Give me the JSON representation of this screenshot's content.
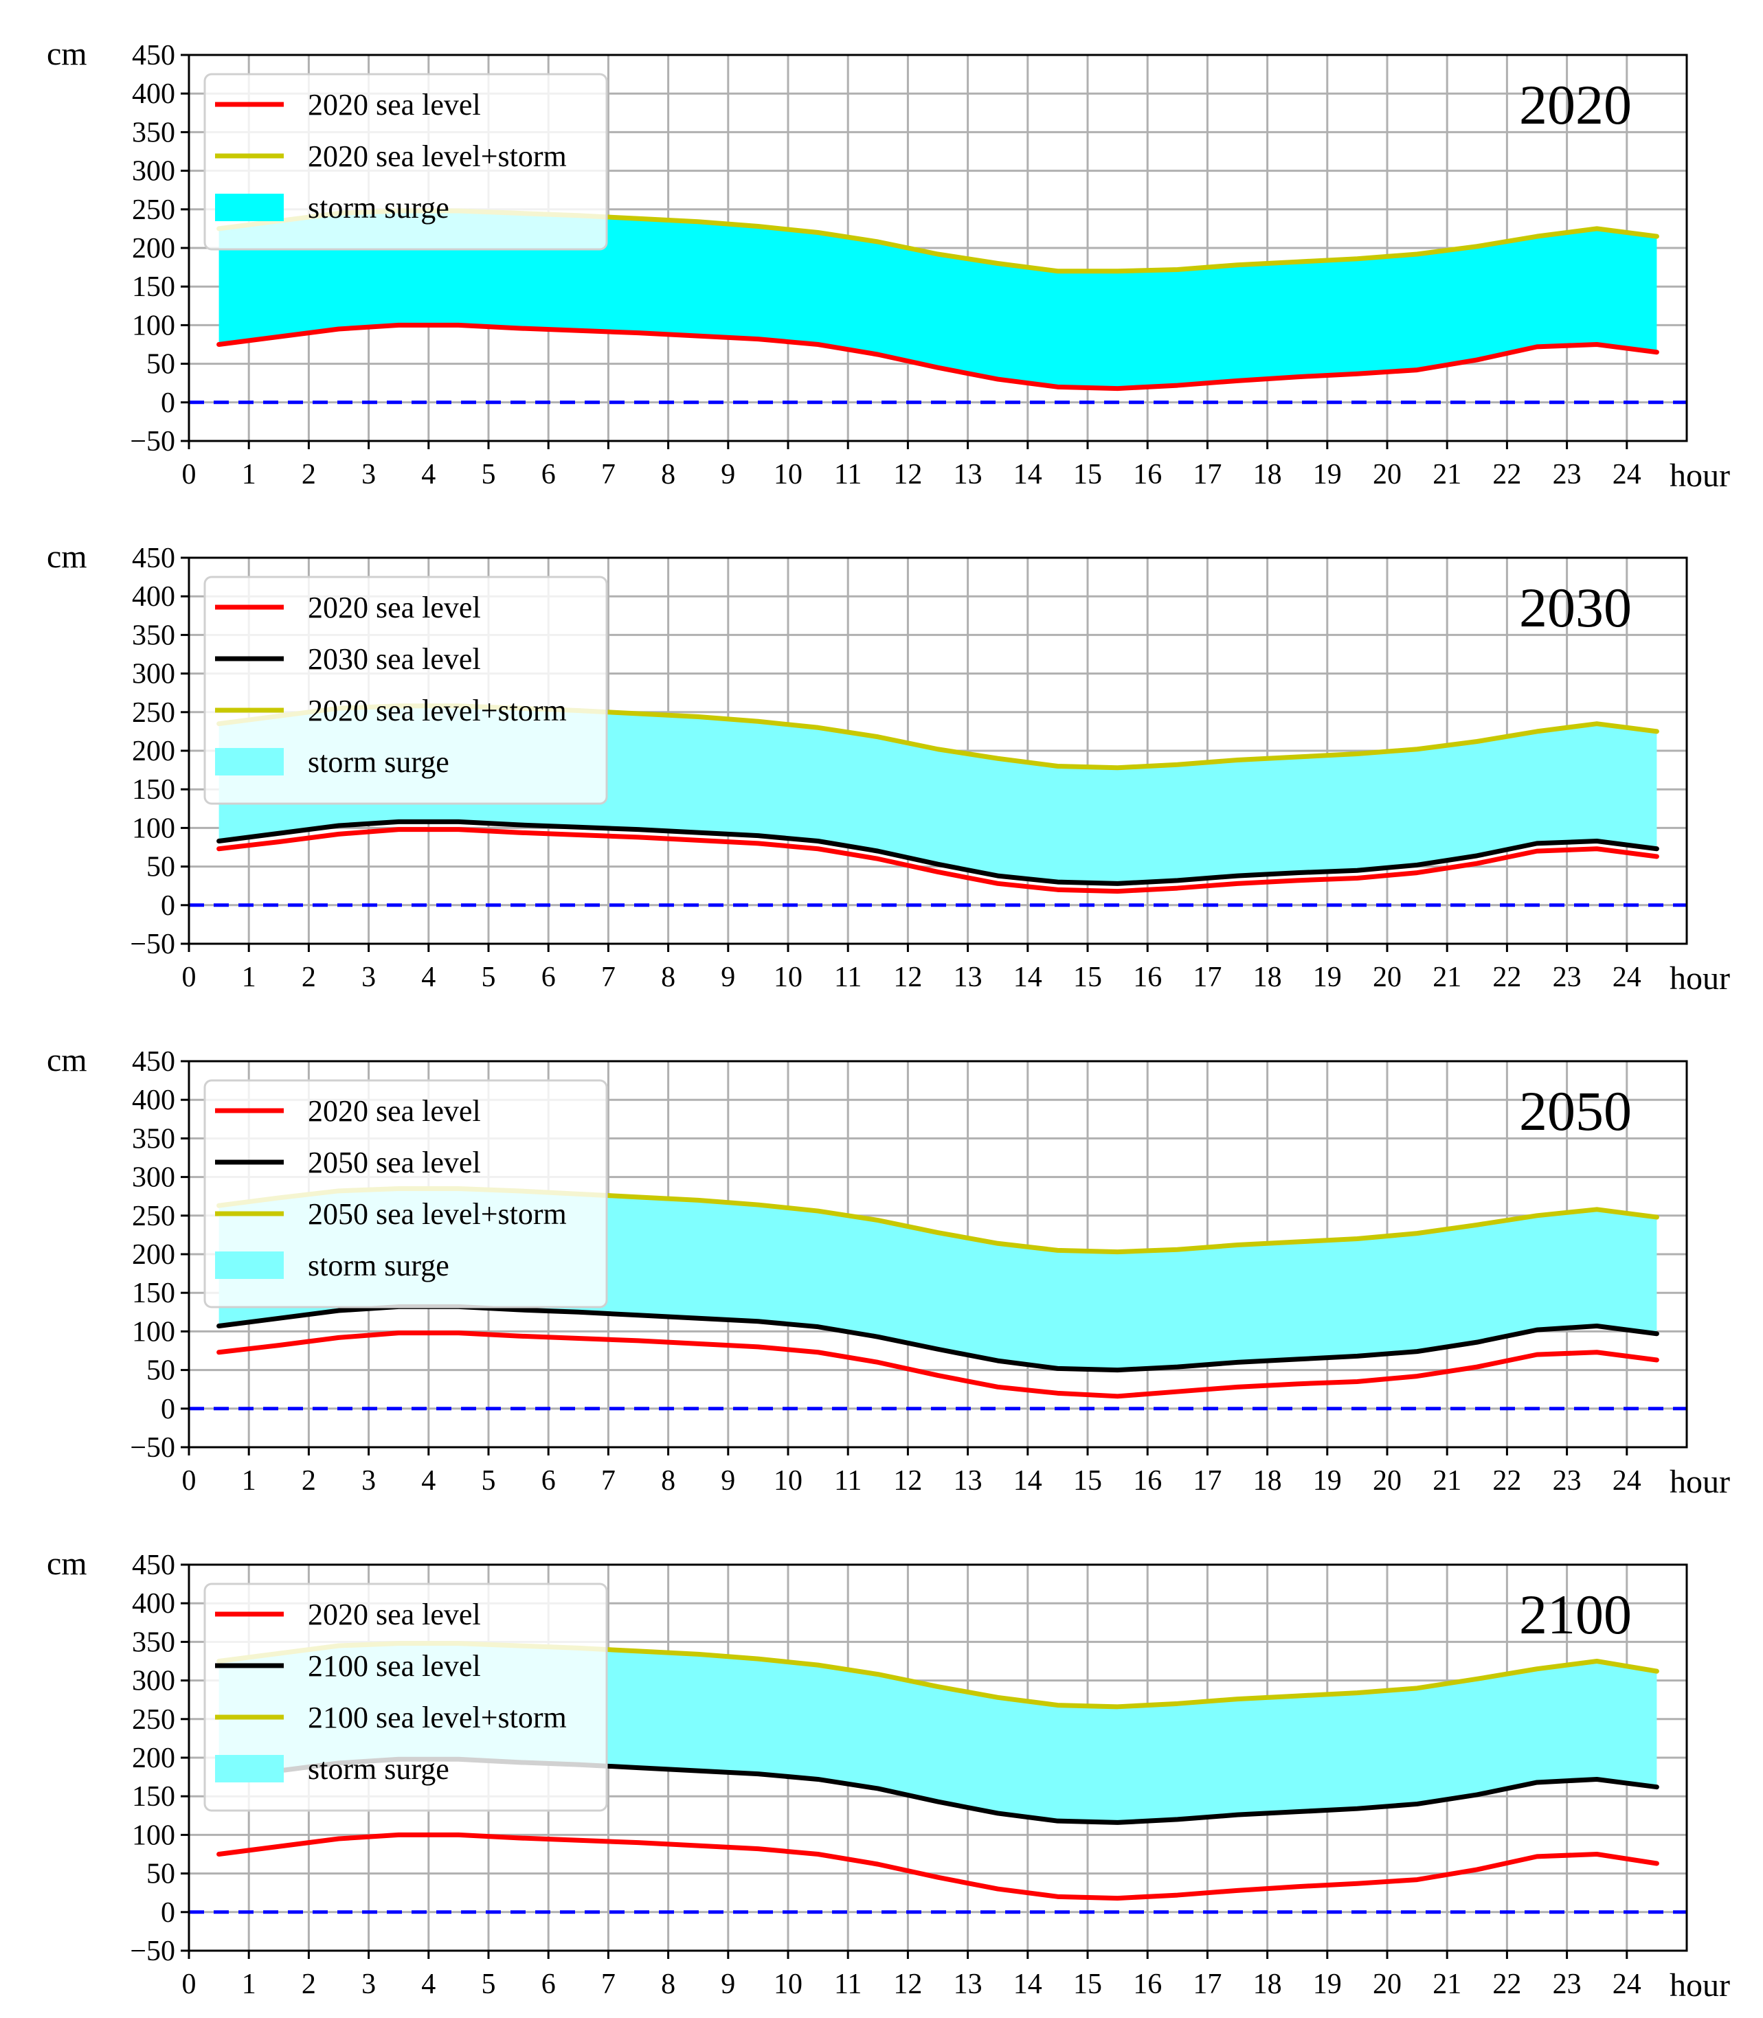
{
  "chart_data": [
    {
      "type": "area",
      "panel_label": "2020",
      "title": "",
      "xlabel": "hour",
      "ylabel": "cm",
      "xlim": [
        0,
        25
      ],
      "ylim": [
        -50,
        450
      ],
      "xticks": [
        "0",
        "1",
        "2",
        "3",
        "4",
        "5",
        "6",
        "7",
        "8",
        "9",
        "10",
        "11",
        "12",
        "13",
        "14",
        "15",
        "16",
        "17",
        "18",
        "19",
        "20",
        "21",
        "22",
        "23",
        "24"
      ],
      "yticks": [
        "450",
        "400",
        "350",
        "300",
        "250",
        "200",
        "150",
        "100",
        "50",
        "0",
        "−50"
      ],
      "x": [
        0.5,
        1.5,
        2.5,
        3.5,
        4.5,
        5.5,
        6.5,
        7.5,
        8.5,
        9.5,
        10.5,
        11.5,
        12.5,
        13.5,
        14.5,
        15.5,
        16.5,
        17.5,
        18.5,
        19.5,
        20.5,
        21.5,
        22.5,
        23.5,
        24.5
      ],
      "series": [
        {
          "name": "2020 sea level",
          "color": "#ff0000",
          "values": [
            75,
            85,
            95,
            100,
            100,
            96,
            93,
            90,
            86,
            82,
            75,
            62,
            45,
            30,
            20,
            18,
            22,
            28,
            33,
            37,
            42,
            55,
            72,
            75,
            65
          ]
        },
        {
          "name": "2020 sea level+storm",
          "color": "#c8c800",
          "values": [
            225,
            235,
            245,
            248,
            248,
            245,
            242,
            238,
            234,
            228,
            220,
            208,
            192,
            180,
            170,
            170,
            172,
            178,
            182,
            186,
            192,
            202,
            215,
            225,
            215
          ]
        }
      ],
      "fill": {
        "name": "storm surge",
        "color": "#00ffff",
        "lower": "2020 sea level",
        "upper": "2020 sea level+storm"
      },
      "reference_line": {
        "y": 0,
        "color": "#0000ff",
        "style": "dashed"
      },
      "legend_location": "upper-left",
      "grid": true
    },
    {
      "type": "area",
      "panel_label": "2030",
      "title": "",
      "xlabel": "hour",
      "ylabel": "cm",
      "xlim": [
        0,
        25
      ],
      "ylim": [
        -50,
        450
      ],
      "xticks": [
        "0",
        "1",
        "2",
        "3",
        "4",
        "5",
        "6",
        "7",
        "8",
        "9",
        "10",
        "11",
        "12",
        "13",
        "14",
        "15",
        "16",
        "17",
        "18",
        "19",
        "20",
        "21",
        "22",
        "23",
        "24"
      ],
      "yticks": [
        "450",
        "400",
        "350",
        "300",
        "250",
        "200",
        "150",
        "100",
        "50",
        "0",
        "−50"
      ],
      "x": [
        0.5,
        1.5,
        2.5,
        3.5,
        4.5,
        5.5,
        6.5,
        7.5,
        8.5,
        9.5,
        10.5,
        11.5,
        12.5,
        13.5,
        14.5,
        15.5,
        16.5,
        17.5,
        18.5,
        19.5,
        20.5,
        21.5,
        22.5,
        23.5,
        24.5
      ],
      "series": [
        {
          "name": "2020 sea level",
          "color": "#ff0000",
          "values": [
            73,
            82,
            92,
            98,
            98,
            94,
            91,
            88,
            84,
            80,
            73,
            60,
            43,
            28,
            20,
            18,
            22,
            28,
            32,
            35,
            42,
            54,
            70,
            73,
            63
          ]
        },
        {
          "name": "2030 sea level",
          "color": "#000000",
          "values": [
            83,
            93,
            103,
            108,
            108,
            104,
            101,
            98,
            94,
            90,
            83,
            70,
            53,
            38,
            30,
            28,
            32,
            38,
            42,
            45,
            52,
            64,
            80,
            83,
            73
          ]
        },
        {
          "name": "2020 sea level+storm",
          "color": "#c8c800",
          "values": [
            235,
            245,
            255,
            258,
            258,
            255,
            252,
            248,
            244,
            238,
            230,
            218,
            202,
            190,
            180,
            178,
            182,
            188,
            192,
            196,
            202,
            212,
            225,
            235,
            225
          ]
        }
      ],
      "fill": {
        "name": "storm surge",
        "color": "#80ffff",
        "lower": "2030 sea level",
        "upper": "2020 sea level+storm"
      },
      "reference_line": {
        "y": 0,
        "color": "#0000ff",
        "style": "dashed"
      },
      "legend_location": "upper-left",
      "grid": true
    },
    {
      "type": "area",
      "panel_label": "2050",
      "title": "",
      "xlabel": "hour",
      "ylabel": "cm",
      "xlim": [
        0,
        25
      ],
      "ylim": [
        -50,
        450
      ],
      "xticks": [
        "0",
        "1",
        "2",
        "3",
        "4",
        "5",
        "6",
        "7",
        "8",
        "9",
        "10",
        "11",
        "12",
        "13",
        "14",
        "15",
        "16",
        "17",
        "18",
        "19",
        "20",
        "21",
        "22",
        "23",
        "24"
      ],
      "yticks": [
        "450",
        "400",
        "350",
        "300",
        "250",
        "200",
        "150",
        "100",
        "50",
        "0",
        "−50"
      ],
      "x": [
        0.5,
        1.5,
        2.5,
        3.5,
        4.5,
        5.5,
        6.5,
        7.5,
        8.5,
        9.5,
        10.5,
        11.5,
        12.5,
        13.5,
        14.5,
        15.5,
        16.5,
        17.5,
        18.5,
        19.5,
        20.5,
        21.5,
        22.5,
        23.5,
        24.5
      ],
      "series": [
        {
          "name": "2020 sea level",
          "color": "#ff0000",
          "values": [
            73,
            82,
            92,
            98,
            98,
            94,
            91,
            88,
            84,
            80,
            73,
            60,
            43,
            28,
            20,
            16,
            22,
            28,
            32,
            35,
            42,
            54,
            70,
            73,
            63
          ]
        },
        {
          "name": "2050 sea level",
          "color": "#000000",
          "values": [
            107,
            117,
            127,
            132,
            132,
            128,
            125,
            121,
            117,
            113,
            106,
            93,
            77,
            62,
            52,
            50,
            54,
            60,
            64,
            68,
            74,
            86,
            102,
            107,
            97
          ]
        },
        {
          "name": "2050 sea level+storm",
          "color": "#c8c800",
          "values": [
            263,
            273,
            282,
            285,
            285,
            282,
            278,
            274,
            270,
            264,
            256,
            244,
            228,
            214,
            205,
            203,
            206,
            212,
            216,
            220,
            227,
            238,
            250,
            258,
            248
          ]
        }
      ],
      "fill": {
        "name": "storm surge",
        "color": "#80ffff",
        "lower": "2050 sea level",
        "upper": "2050 sea level+storm"
      },
      "reference_line": {
        "y": 0,
        "color": "#0000ff",
        "style": "dashed"
      },
      "legend_location": "upper-left",
      "grid": true
    },
    {
      "type": "area",
      "panel_label": "2100",
      "title": "",
      "xlabel": "hour",
      "ylabel": "cm",
      "xlim": [
        0,
        25
      ],
      "ylim": [
        -50,
        450
      ],
      "xticks": [
        "0",
        "1",
        "2",
        "3",
        "4",
        "5",
        "6",
        "7",
        "8",
        "9",
        "10",
        "11",
        "12",
        "13",
        "14",
        "15",
        "16",
        "17",
        "18",
        "19",
        "20",
        "21",
        "22",
        "23",
        "24"
      ],
      "yticks": [
        "450",
        "400",
        "350",
        "300",
        "250",
        "200",
        "150",
        "100",
        "50",
        "0",
        "−50"
      ],
      "x": [
        0.5,
        1.5,
        2.5,
        3.5,
        4.5,
        5.5,
        6.5,
        7.5,
        8.5,
        9.5,
        10.5,
        11.5,
        12.5,
        13.5,
        14.5,
        15.5,
        16.5,
        17.5,
        18.5,
        19.5,
        20.5,
        21.5,
        22.5,
        23.5,
        24.5
      ],
      "series": [
        {
          "name": "2020 sea level",
          "color": "#ff0000",
          "values": [
            75,
            85,
            95,
            100,
            100,
            96,
            93,
            90,
            86,
            82,
            75,
            62,
            45,
            30,
            20,
            18,
            22,
            28,
            33,
            37,
            42,
            55,
            72,
            75,
            63
          ]
        },
        {
          "name": "2100 sea level",
          "color": "#000000",
          "values": [
            173,
            183,
            193,
            198,
            198,
            194,
            191,
            187,
            183,
            179,
            172,
            160,
            143,
            128,
            118,
            116,
            120,
            126,
            130,
            134,
            140,
            152,
            168,
            172,
            162
          ]
        },
        {
          "name": "2100 sea level+storm",
          "color": "#c8c800",
          "values": [
            325,
            335,
            345,
            348,
            348,
            345,
            342,
            338,
            334,
            328,
            320,
            308,
            292,
            278,
            268,
            266,
            270,
            276,
            280,
            284,
            290,
            302,
            315,
            325,
            312
          ]
        }
      ],
      "fill": {
        "name": "storm surge",
        "color": "#80ffff",
        "lower": "2100 sea level",
        "upper": "2100 sea level+storm"
      },
      "reference_line": {
        "y": 0,
        "color": "#0000ff",
        "style": "dashed"
      },
      "legend_location": "upper-left",
      "grid": true
    }
  ]
}
